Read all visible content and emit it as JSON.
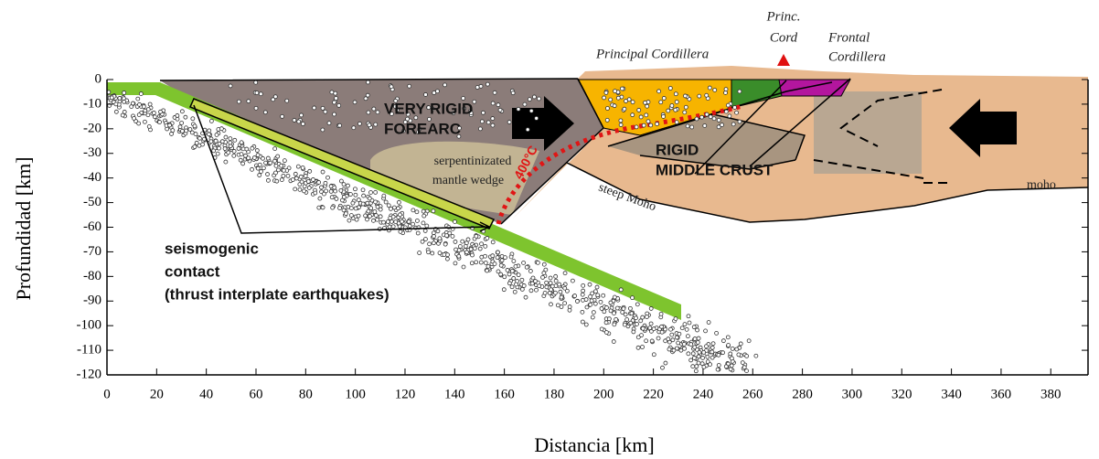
{
  "axes": {
    "x_label": "Distancia [km]",
    "y_label": "Profundidad [km]",
    "xlim": [
      0,
      395
    ],
    "ylim": [
      -120,
      0
    ],
    "xticks": [
      0,
      20,
      40,
      60,
      80,
      100,
      120,
      140,
      160,
      180,
      200,
      220,
      240,
      260,
      280,
      300,
      320,
      340,
      360,
      380
    ],
    "yticks": [
      0,
      -10,
      -20,
      -30,
      -40,
      -50,
      -60,
      -70,
      -80,
      -90,
      -100,
      -110,
      -120
    ]
  },
  "labels": {
    "principal_cordillera": "Principal Cordillera",
    "princ_cord": [
      "Princ.",
      "Cord"
    ],
    "frontal_cordillera": [
      "Frontal",
      "Cordillera"
    ],
    "forearc": [
      "VERY RIGID",
      "FOREARC"
    ],
    "mantle_wedge": [
      "serpentinizated",
      "mantle wedge"
    ],
    "isotherm": "400°C",
    "middle_crust": [
      "RIGID",
      "MIDDLE CRUST"
    ],
    "steep_moho": "steep Moho",
    "moho": "moho",
    "seismogenic": [
      "seismogenic",
      "contact",
      "(thrust interplate earthquakes)"
    ]
  }
}
